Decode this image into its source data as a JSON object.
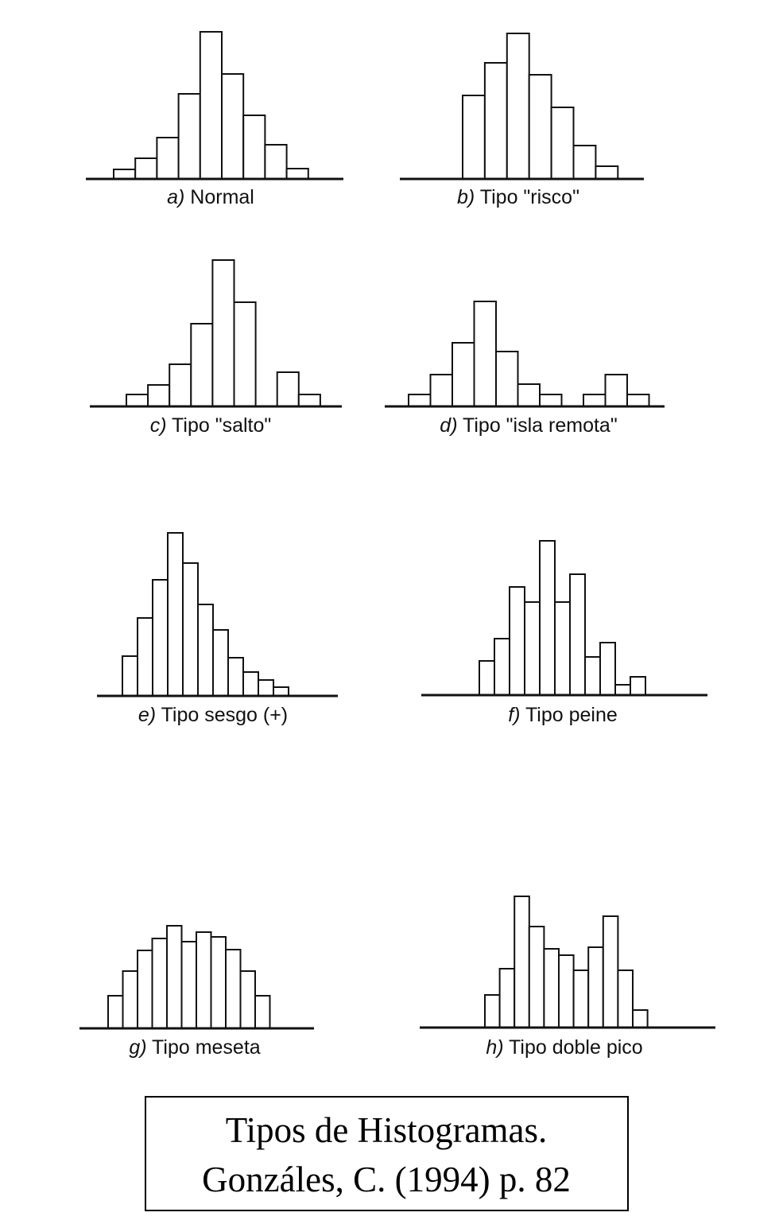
{
  "chart_data": [
    {
      "type": "bar",
      "letter": "a)",
      "title": "Normal",
      "values": [
        12,
        26,
        52,
        107,
        185,
        132,
        80,
        43,
        13
      ]
    },
    {
      "type": "bar",
      "letter": "b)",
      "title": "Tipo \"risco\"",
      "values": [
        105,
        146,
        183,
        131,
        90,
        42,
        16
      ]
    },
    {
      "type": "bar",
      "letter": "c)",
      "title": "Tipo \"salto\"",
      "values": [
        15,
        27,
        53,
        104,
        184,
        131,
        null,
        43,
        15
      ]
    },
    {
      "type": "bar",
      "letter": "d)",
      "title": "Tipo \"isla remota\"",
      "values": [
        15,
        40,
        80,
        132,
        69,
        28,
        15,
        null,
        15,
        40,
        15
      ]
    },
    {
      "type": "bar",
      "letter": "e)",
      "title": "Tipo sesgo (+)",
      "values": [
        50,
        98,
        146,
        205,
        167,
        115,
        83,
        48,
        30,
        20,
        11
      ]
    },
    {
      "type": "bar",
      "letter": "f)",
      "title": "Tipo peine",
      "values": [
        43,
        71,
        136,
        117,
        194,
        117,
        152,
        48,
        66,
        13,
        23
      ]
    },
    {
      "type": "bar",
      "letter": "g)",
      "title": "Tipo meseta",
      "values": [
        41,
        72,
        98,
        113,
        129,
        109,
        121,
        115,
        99,
        72,
        41
      ]
    },
    {
      "type": "bar",
      "letter": "h)",
      "title": "Tipo doble pico",
      "values": [
        41,
        74,
        165,
        127,
        99,
        91,
        72,
        101,
        140,
        72,
        22
      ]
    }
  ],
  "caption": {
    "line1": "Tipos de Histogramas.",
    "line2": "Gonzáles, C. (1994) p. 82"
  }
}
